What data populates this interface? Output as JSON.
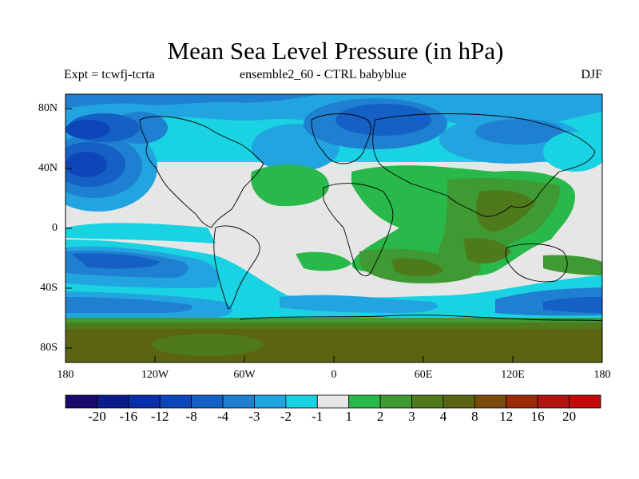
{
  "header": {
    "title": "Mean Sea Level Pressure (in hPa)",
    "left": "Expt = tcwfj-tcrta",
    "center": "ensemble2_60 - CTRL babyblue",
    "right": "DJF"
  },
  "axes": {
    "x_ticks": [
      "180",
      "120W",
      "60W",
      "0",
      "60E",
      "120E",
      "180"
    ],
    "y_ticks": [
      "80N",
      "40N",
      "0",
      "40S",
      "80S"
    ]
  },
  "colorbar": {
    "labels": [
      "-20",
      "-16",
      "-12",
      "-8",
      "-4",
      "-3",
      "-2",
      "-1",
      "1",
      "2",
      "3",
      "4",
      "8",
      "12",
      "16",
      "20"
    ],
    "colors": [
      "#1a0a6e",
      "#0b1c8c",
      "#0a2ea8",
      "#0d46b8",
      "#1560c4",
      "#1f7fd0",
      "#22a4e0",
      "#19d2e2",
      "#e6e6e6",
      "#29b84a",
      "#3f9a33",
      "#4e7a1c",
      "#5a6412",
      "#7a4a0a",
      "#9a2a08",
      "#b01410",
      "#c40808"
    ]
  },
  "colors": {
    "ocean_default": "#e6e6e6",
    "coastline": "#000000"
  }
}
